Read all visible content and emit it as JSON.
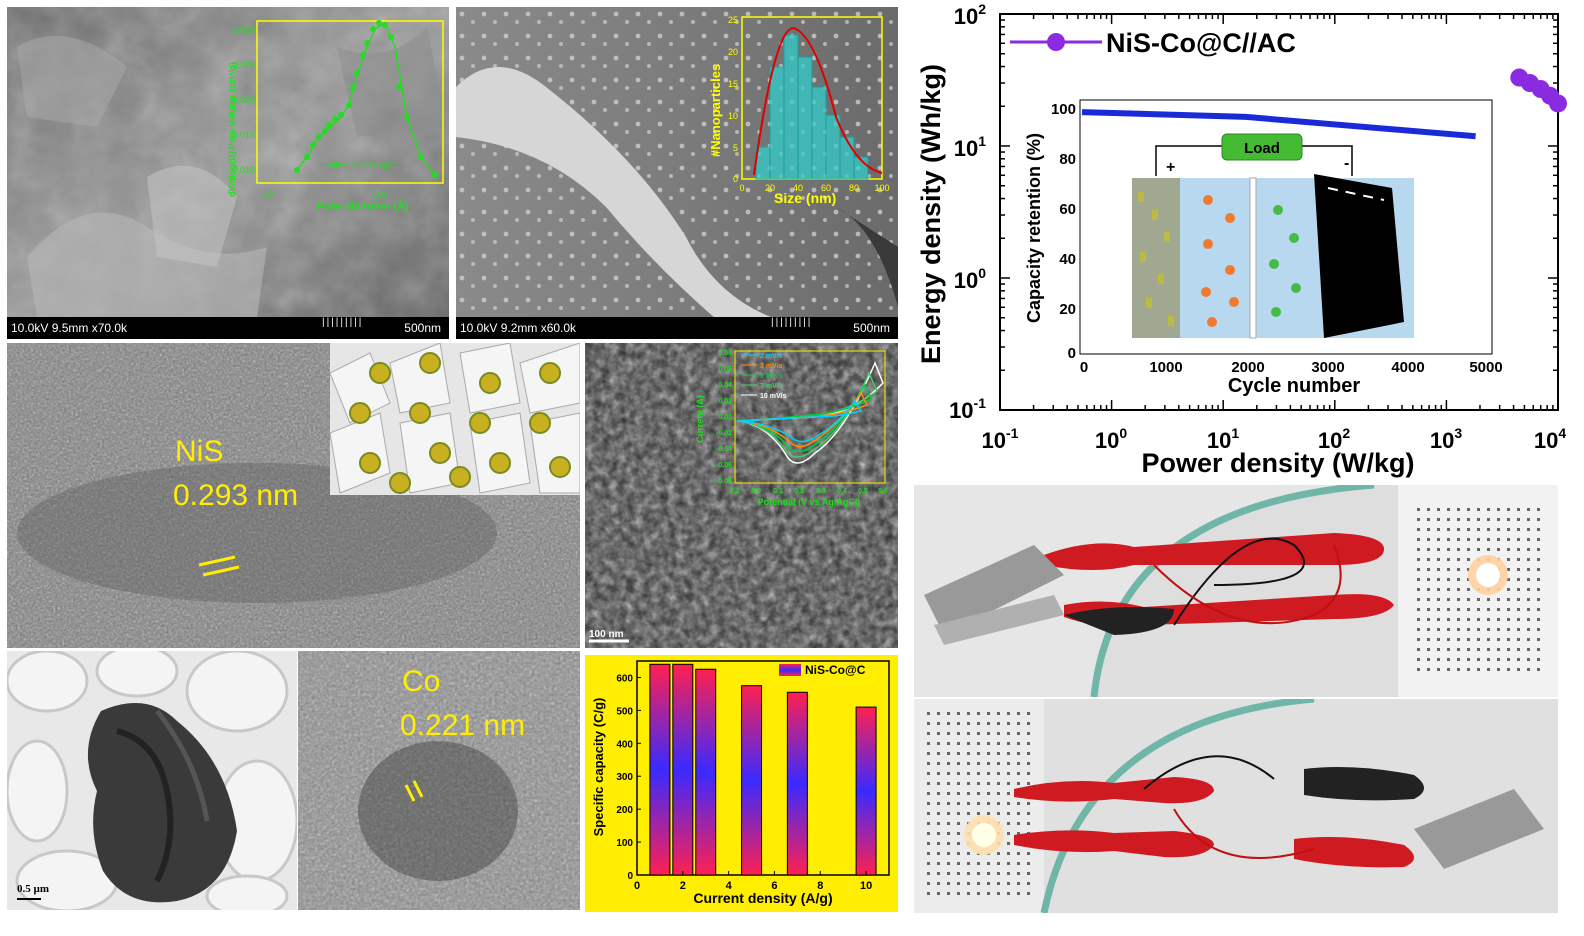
{
  "sem1": {
    "info": "10.0kV 9.5mm x70.0k",
    "scale": "500nm",
    "inset": {
      "ylabel": "dV/dlog(D) Pore Volume (cm³/g)",
      "xlabel": "Pore diameter (Å)",
      "legend": "NiS-Co@C",
      "yticks": [
        "0.010",
        "0.015",
        "0.020",
        "0.025",
        "0.030"
      ],
      "xticks": [
        "10",
        "100"
      ]
    }
  },
  "sem2": {
    "info": "10.0kV 9.2mm x60.0k",
    "scale": "500nm",
    "inset": {
      "ylabel": "#Nanoparticles",
      "xlabel": "Size (nm)",
      "xticks": [
        "0",
        "20",
        "40",
        "60",
        "80",
        "100"
      ],
      "yticks": [
        "0",
        "5",
        "10",
        "15",
        "20",
        "25"
      ]
    }
  },
  "hrtem_nis": {
    "label": "NiS",
    "spacing": "0.293 nm"
  },
  "hrtem_co": {
    "label": "Co",
    "spacing": "0.221 nm"
  },
  "tem_scale": "0.5 µm",
  "cv_panel": {
    "scale": "100 nm",
    "xlabel": "Potential (V vs Ag/AgCl)",
    "ylabel": "Current (A)",
    "legend": [
      "2 mV/s",
      "3 mV/s",
      "5 mV/s",
      "7 mV/s",
      "10 mV/s"
    ],
    "colors": [
      "#00d0ff",
      "#ff8c00",
      "#00cc44",
      "#44cc66",
      "#ffffff"
    ],
    "yticks": [
      "0.08",
      "0.06",
      "0.04",
      "0.02",
      "0.00",
      "-0.02",
      "-0.04",
      "-0.06",
      "-0.08"
    ],
    "xticks": [
      "0.1",
      "0.0",
      "0.1",
      "0.2",
      "0.3",
      "0.4",
      "0.5",
      "0.6"
    ]
  },
  "ragone": {
    "legend": "NiS-Co@C//AC",
    "ylabel": "Energy density (Wh/kg)",
    "xlabel": "Power density (W/kg)",
    "xticks": [
      [
        "10",
        "-1"
      ],
      [
        "10",
        "0"
      ],
      [
        "10",
        "1"
      ],
      [
        "10",
        "2"
      ],
      [
        "10",
        "3"
      ],
      [
        "10",
        "4"
      ]
    ],
    "yticks": [
      [
        "10",
        "2"
      ],
      [
        "10",
        "1"
      ],
      [
        "10",
        "0"
      ],
      [
        "10",
        "-1"
      ]
    ],
    "inset": {
      "ylabel": "Capacity retention (%)",
      "xlabel": "Cycle number",
      "load": "Load",
      "plus": "+",
      "minus": "-",
      "yticks": [
        "100",
        "80",
        "60",
        "40",
        "20",
        "0"
      ],
      "xticks": [
        "0",
        "1000",
        "2000",
        "3000",
        "4000",
        "5000"
      ]
    }
  },
  "chart_data": [
    {
      "type": "bar",
      "legend": "NiS-Co@C",
      "categories": [
        1,
        2,
        3,
        5,
        7,
        10
      ],
      "values": [
        640,
        640,
        625,
        575,
        555,
        510
      ],
      "xlabel": "Current density (A/g)",
      "ylabel": "Specific capacity (C/g)",
      "xlim": [
        0,
        11
      ],
      "ylim": [
        0,
        650
      ],
      "xticks": [
        "0",
        "2",
        "4",
        "6",
        "8",
        "10"
      ],
      "yticks": [
        "0",
        "100",
        "200",
        "300",
        "400",
        "500",
        "600"
      ],
      "background": "#ffee00"
    },
    {
      "type": "line",
      "legend": "NiS-Co@C//AC",
      "x_log": true,
      "y_log": true,
      "x": [
        4500,
        5600,
        7000,
        8500,
        10000
      ],
      "y": [
        33,
        30,
        27,
        24,
        21
      ],
      "xlim": [
        0.1,
        10000
      ],
      "ylim": [
        0.1,
        100
      ],
      "color": "#8a2be2"
    }
  ]
}
